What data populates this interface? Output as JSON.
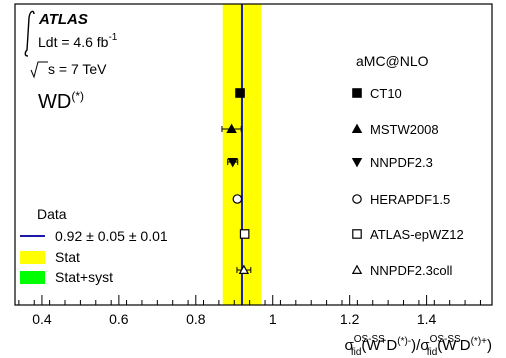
{
  "experiment": "ATLAS",
  "lumi_prefix": "Ldt = 4.6 fb",
  "lumi_exp": "-1",
  "energy": "s = 7 TeV",
  "channel": "WD",
  "channel_sup": "(*)",
  "generator": "aMC@NLO",
  "legend": {
    "data_title": "Data",
    "data_value": "0.92 ± 0.05 ± 0.01",
    "stat": "Stat",
    "stat_syst": "Stat+syst"
  },
  "colors": {
    "stat": "#ffff00",
    "stat_syst": "#00ff00",
    "data_line": "#1a1aa6"
  },
  "chart_data": {
    "type": "scatter",
    "xlim": [
      0.33,
      1.57
    ],
    "xticks": [
      0.4,
      0.6,
      0.8,
      1,
      1.2,
      1.4
    ],
    "xtick_labels": [
      "0.4",
      "0.6",
      "0.8",
      "1",
      "1.2",
      "1.4"
    ],
    "xlabel": "σfidOS-SS(W+D(*)-)/σfidOS-SS(W-D(*)+)",
    "data": {
      "value": 0.92,
      "stat": 0.05,
      "syst": 0.01,
      "band": [
        0.87,
        0.97
      ]
    },
    "predictions": [
      {
        "name": "CT10",
        "marker": "square-filled",
        "value": 0.915,
        "err": 0.0
      },
      {
        "name": "MSTW2008",
        "marker": "triangle-up-filled",
        "value": 0.893,
        "err": 0.025
      },
      {
        "name": "NNPDF2.3",
        "marker": "triangle-down-filled",
        "value": 0.896,
        "err": 0.013
      },
      {
        "name": "HERAPDF1.5",
        "marker": "circle-open",
        "value": 0.908,
        "err": 0.0
      },
      {
        "name": "ATLAS-epWZ12",
        "marker": "square-open",
        "value": 0.927,
        "err": 0.0
      },
      {
        "name": "NNPDF2.3coll",
        "marker": "triangle-up-open",
        "value": 0.925,
        "err": 0.018
      }
    ]
  }
}
